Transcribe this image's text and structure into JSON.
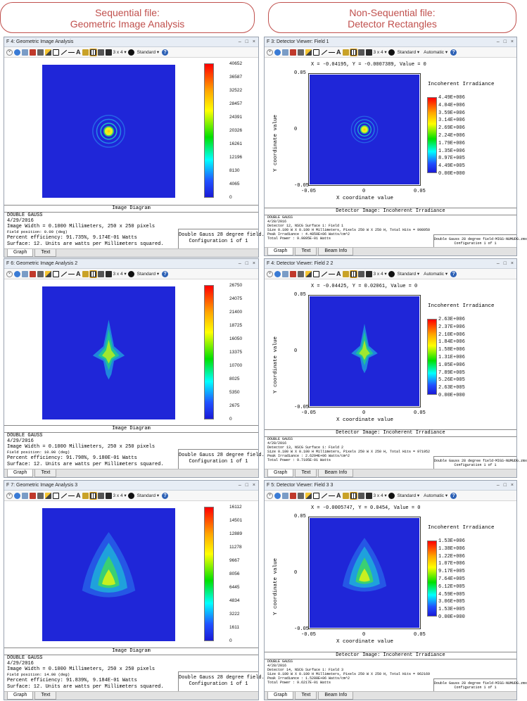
{
  "headers": {
    "left": {
      "line1": "Sequential file:",
      "line2": "Geometric Image Analysis"
    },
    "right": {
      "line1": "Non-Sequential file:",
      "line2": "Detector Rectangles"
    }
  },
  "colors": {
    "header_accent": "#c0504d",
    "plot_blue": "#1f26d8"
  },
  "toolbar": {
    "layout": "3 x 4 ▾",
    "standard": "Standard ▾",
    "automatic": "Automatic ▾",
    "help": "?"
  },
  "gia": [
    {
      "title": "F 4: Geometric Image Analysis",
      "ticks": [
        "40652",
        "36587",
        "32522",
        "28457",
        "24391",
        "20326",
        "16261",
        "12196",
        "8130",
        "4065",
        "0"
      ],
      "caption": "Image Diagram",
      "info": [
        "DOUBLE GAUSS",
        "4/29/2016",
        "Image Width = 0.1000 Millimeters, 250 x 250 pixels",
        "Field position:     0.00 (deg)",
        "Percent efficiency: 91.735%, 9.174E-01 Watts",
        "Surface: 12. Units are watts per Millimeters squared."
      ],
      "file": "Double Gauss 28 degree field.zmx",
      "config": "Configuration 1 of 1",
      "tabs": [
        "Graph",
        "Text"
      ]
    },
    {
      "title": "F 6: Geometric Image Analysis 2",
      "ticks": [
        "26750",
        "24075",
        "21400",
        "18725",
        "16050",
        "13375",
        "10700",
        "8025",
        "5350",
        "2675",
        "0"
      ],
      "caption": "Image Diagram",
      "info": [
        "DOUBLE GAUSS",
        "4/29/2016",
        "Image Width = 0.1000 Millimeters, 250 x 250 pixels",
        "Field position:    10.00 (deg)",
        "Percent efficiency: 91.798%, 9.180E-01 Watts",
        "Surface: 12. Units are watts per Millimeters squared."
      ],
      "file": "Double Gauss 28 degree field.zmx",
      "config": "Configuration 1 of 1",
      "tabs": [
        "Graph",
        "Text"
      ]
    },
    {
      "title": "F 7: Geometric Image Analysis 3",
      "ticks": [
        "16112",
        "14501",
        "12889",
        "11278",
        "9667",
        "8056",
        "6445",
        "4834",
        "3222",
        "1611",
        "0"
      ],
      "caption": "Image Diagram",
      "info": [
        "DOUBLE GAUSS",
        "4/29/2016",
        "Image Width = 0.1000 Millimeters, 250 x 250 pixels",
        "Field position:    14.00 (deg)",
        "Percent efficiency: 91.839%, 9.184E-01 Watts",
        "Surface: 12. Units are watts per Millimeters squared."
      ],
      "file": "Double Gauss 28 degree field.zmx",
      "config": "Configuration 1 of 1",
      "tabs": [
        "Graph",
        "Text"
      ]
    }
  ],
  "det": [
    {
      "title": "F 3: Detector Viewer: Field 1",
      "coord": "X = -0.04195, Y = -0.0007389, Value = 0",
      "legend_title": "Incoherent Irradiance",
      "ticks": [
        "4.49E+006",
        "4.04E+006",
        "3.59E+006",
        "3.14E+006",
        "2.69E+006",
        "2.24E+006",
        "1.79E+006",
        "1.35E+006",
        "8.97E+005",
        "4.49E+005",
        "0.00E+000"
      ],
      "xlabel": "X coordinate value",
      "ylabel": "Y coordinate value",
      "xticks": [
        "-0.05",
        "0",
        "0.05"
      ],
      "yticks": [
        "0.05",
        "0",
        "-0.05"
      ],
      "caption": "Detector Image: Incoherent Irradiance",
      "info": [
        "DOUBLE GAUSS",
        "4/28/2016",
        "Detector 12, NSCG Surface 1: Field 1",
        "Size 0.100 W X 0.100 H Millimeters, Pixels 250 W X 250 H, Total Hits = 998950",
        "Peak Irradiance : 4.4850E+06 Watts/cm^2",
        "Total Power     : 9.9895E-01 Watts"
      ],
      "file": "Double Gauss 28 degree field-MIGS-NUMUDG.zmx",
      "config": "Configuration 1 of 1",
      "tabs": [
        "Graph",
        "Text",
        "Beam Info"
      ]
    },
    {
      "title": "F 4: Detector Viewer: Field 2 2",
      "coord": "X = -0.04425, Y = 0.02061, Value = 0",
      "legend_title": "Incoherent Irradiance",
      "ticks": [
        "2.63E+006",
        "2.37E+006",
        "2.10E+006",
        "1.84E+006",
        "1.58E+006",
        "1.31E+006",
        "1.05E+006",
        "7.89E+005",
        "5.26E+005",
        "2.63E+005",
        "0.00E+000"
      ],
      "xlabel": "X coordinate value",
      "ylabel": "Y coordinate value",
      "xticks": [
        "-0.05",
        "0",
        "0.05"
      ],
      "yticks": [
        "0.05",
        "0",
        "-0.05"
      ],
      "caption": "Detector Image: Incoherent Irradiance",
      "info": [
        "DOUBLE GAUSS",
        "4/28/2016",
        "Detector 13, NSCG Surface 1: Field 2",
        "Size 0.100 W X 0.100 H Millimeters, Pixels 250 W X 250 H, Total Hits = 971952",
        "Peak Irradiance : 2.6294E+06 Watts/cm^2",
        "Total Power     : 9.7195E-01 Watts"
      ],
      "file": "Double Gauss 28 degree field-MIGS-NUMUDG.zmx",
      "config": "Configuration 1 of 1",
      "tabs": [
        "Graph",
        "Text",
        "Beam Info"
      ]
    },
    {
      "title": "F 5: Detector Viewer: Field 3 3",
      "coord": "X = -0.0005747, Y = 0.0454, Value = 0",
      "legend_title": "Incoherent Irradiance",
      "ticks": [
        "1.53E+006",
        "1.38E+006",
        "1.22E+006",
        "1.07E+006",
        "9.17E+005",
        "7.64E+005",
        "6.12E+005",
        "4.59E+005",
        "3.06E+005",
        "1.53E+005",
        "0.00E+000"
      ],
      "xlabel": "X coordinate value",
      "ylabel": "Y coordinate value",
      "xticks": [
        "-0.05",
        "0",
        "0.05"
      ],
      "yticks": [
        "0.05",
        "0",
        "-0.05"
      ],
      "caption": "Detector Image: Incoherent Irradiance",
      "info": [
        "DOUBLE GAUSS",
        "4/28/2016",
        "Detector 14, NSCG Surface 1: Field 3",
        "Size 0.100 W X 0.100 H Millimeters, Pixels 250 W X 250 H, Total Hits = 962169",
        "Peak Irradiance : 1.5288E+06 Watts/cm^2",
        "Total Power     : 9.6217E-01 Watts"
      ],
      "file": "Double Gauss 28 degree field-MIGS-NUMUDG.zmx",
      "config": "Configuration 1 of 1",
      "tabs": [
        "Graph",
        "Text",
        "Beam Info"
      ]
    }
  ]
}
